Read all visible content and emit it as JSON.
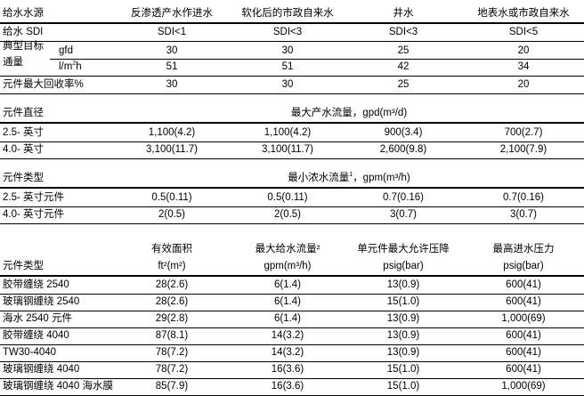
{
  "table1": {
    "header": [
      "给水水源",
      "反渗透产水作进水",
      "软化后的市政自来水",
      "井水",
      "地表水或市政自来水"
    ],
    "sdi": {
      "label": "给水 SDI",
      "values": [
        "SDI<1",
        "SDI<3",
        "SDI<3",
        "SDI<5"
      ]
    },
    "flux_label_1": "典型目标",
    "flux_label_2": "通量",
    "gfd": {
      "unit": "gfd",
      "values": [
        "30",
        "30",
        "25",
        "20"
      ]
    },
    "lmh": {
      "unit_base": "l/m",
      "unit_sup": "2",
      "unit_end": "h",
      "values": [
        "51",
        "51",
        "42",
        "34"
      ]
    },
    "recovery": {
      "label": "元件最大回收率%",
      "values": [
        "30",
        "30",
        "25",
        "20"
      ]
    }
  },
  "table2": {
    "header_label": "元件直径",
    "header_title": "最大产水流量，gpd(m³/d)",
    "rows": [
      {
        "label": "2.5- 英寸",
        "values": [
          "1,100(4.2)",
          "1,100(4.2)",
          "900(3.4)",
          "700(2.7)"
        ]
      },
      {
        "label": "4.0- 英寸",
        "values": [
          "3,100(11.7)",
          "3,100(11.7)",
          "2,600(9.8)",
          "2,100(7.9)"
        ]
      }
    ]
  },
  "table3": {
    "header_label": "元件类型",
    "header_title_a": "最小浓水流量",
    "header_title_sup": "1",
    "header_title_b": "，gpm(m³/h)",
    "rows": [
      {
        "label": "2.5- 英寸元件",
        "values": [
          "0.5(0.11)",
          "0.5(0.11)",
          "0.7(0.16)",
          "0.7(0.16)"
        ]
      },
      {
        "label": "4.0- 英寸元件",
        "values": [
          "2(0.5)",
          "2(0.5)",
          "3(0.7)",
          "3(0.7)"
        ]
      }
    ]
  },
  "table4": {
    "header_label": "元件类型",
    "headers_top": [
      "有效面积",
      "最大给水流量²",
      "单元件最大允许压降",
      "最高进水压力"
    ],
    "headers_unit": [
      "ft²(m²)",
      "gpm(m³/h)",
      "psig(bar)",
      "psig(bar)"
    ],
    "rows": [
      {
        "label": "胶带缠绕 2540",
        "values": [
          "28(2.6)",
          "6(1.4)",
          "13(0.9)",
          "600(41)"
        ]
      },
      {
        "label": "玻璃钢缠绕 2540",
        "values": [
          "28(2.6)",
          "6(1.4)",
          "15(1.0)",
          "600(41)"
        ]
      },
      {
        "label": "海水 2540 元件",
        "values": [
          "29(2.8)",
          "6(1.4)",
          "13(0.9)",
          "1,000(69)"
        ]
      },
      {
        "label": "胶带缠绕 4040",
        "values": [
          "87(8.1)",
          "14(3.2)",
          "13(0.9)",
          "600(41)"
        ]
      },
      {
        "label": "TW30-4040",
        "values": [
          "78(7.2)",
          "14(3.2)",
          "13(0.9)",
          "600(41)"
        ]
      },
      {
        "label": "玻璃钢缠绕 4040",
        "values": [
          "78(7.2)",
          "16(3.6)",
          "15(1.0)",
          "600(41)"
        ]
      },
      {
        "label": "玻璃钢缠绕 4040 海水膜",
        "values": [
          "85(7.9)",
          "16(3.6)",
          "15(1.0)",
          "1,000(69)"
        ]
      }
    ]
  }
}
